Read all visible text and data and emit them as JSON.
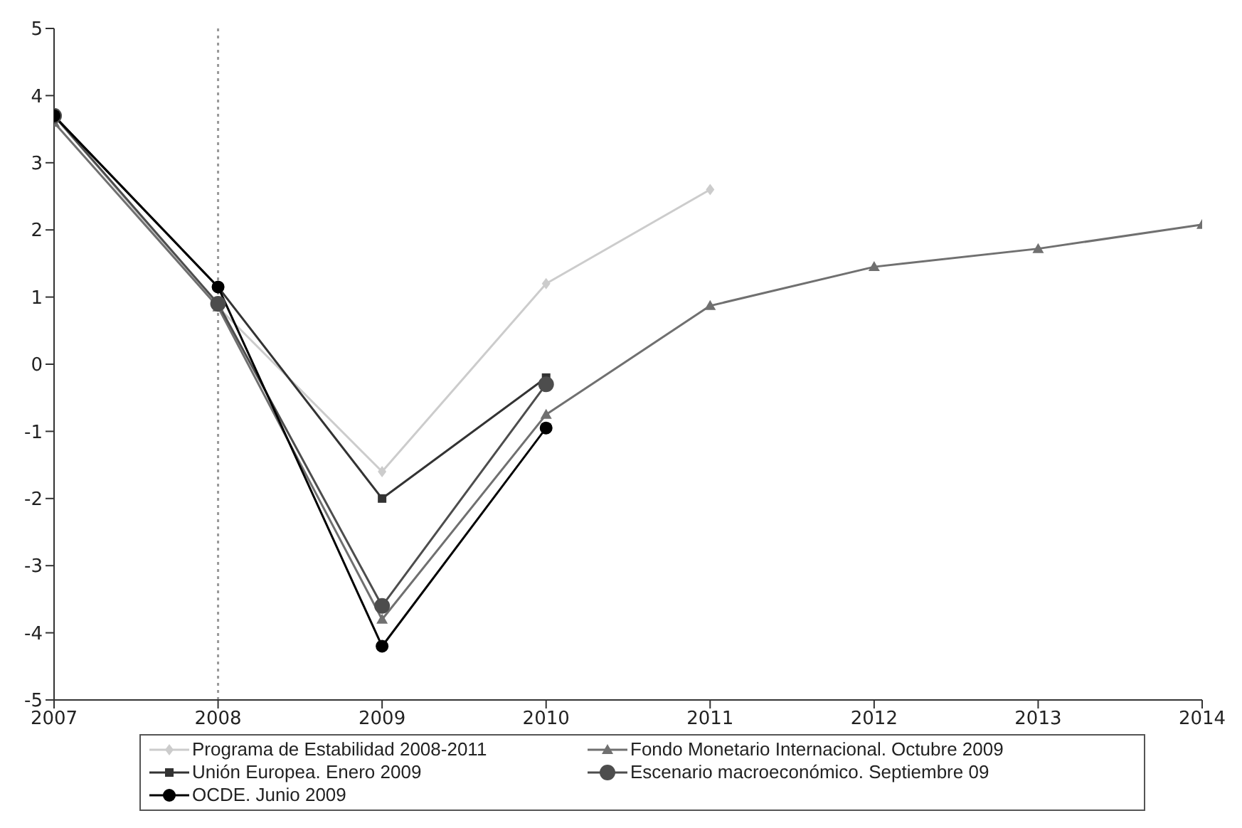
{
  "chart_data": {
    "type": "line",
    "x": [
      2007,
      2008,
      2009,
      2010,
      2011,
      2012,
      2013,
      2014
    ],
    "xlim": [
      2007,
      2014
    ],
    "xticks": [
      2007,
      2008,
      2009,
      2010,
      2011,
      2012,
      2013,
      2014
    ],
    "ylim": [
      -5,
      5
    ],
    "yticks": [
      -5,
      -4,
      -3,
      -2,
      -1,
      0,
      1,
      2,
      3,
      4,
      5
    ],
    "grid": false,
    "legend": "bottom",
    "ref_lines": [
      {
        "axis": "x",
        "value": 2008,
        "color": "#999999",
        "line_style": "dotted"
      }
    ],
    "series": [
      {
        "name": "Programa de Estabilidad 2008-2011",
        "color": "#cccccc",
        "marker": "diamond",
        "values": [
          3.7,
          0.85,
          -1.6,
          1.2,
          2.6,
          null,
          null,
          null
        ]
      },
      {
        "name": "Fondo Monetario Internacional. Octubre 2009",
        "color": "#707070",
        "marker": "triangle",
        "values": [
          3.6,
          0.85,
          -3.8,
          -0.75,
          0.87,
          1.45,
          1.72,
          2.08
        ]
      },
      {
        "name": "Unión Europea. Enero 2009",
        "color": "#333333",
        "marker": "square",
        "values": [
          3.7,
          1.15,
          -2.0,
          -0.2,
          null,
          null,
          null,
          null
        ]
      },
      {
        "name": "Escenario macroeconómico. Septiembre 09",
        "color": "#4d4d4d",
        "marker": "circle",
        "values": [
          3.7,
          0.9,
          -3.6,
          -0.3,
          null,
          null,
          null,
          null
        ]
      },
      {
        "name": "OCDE. Junio 2009",
        "color": "#000000",
        "marker": "circle",
        "values": [
          3.7,
          1.15,
          -4.2,
          -0.95,
          null,
          null,
          null,
          null
        ]
      }
    ]
  }
}
